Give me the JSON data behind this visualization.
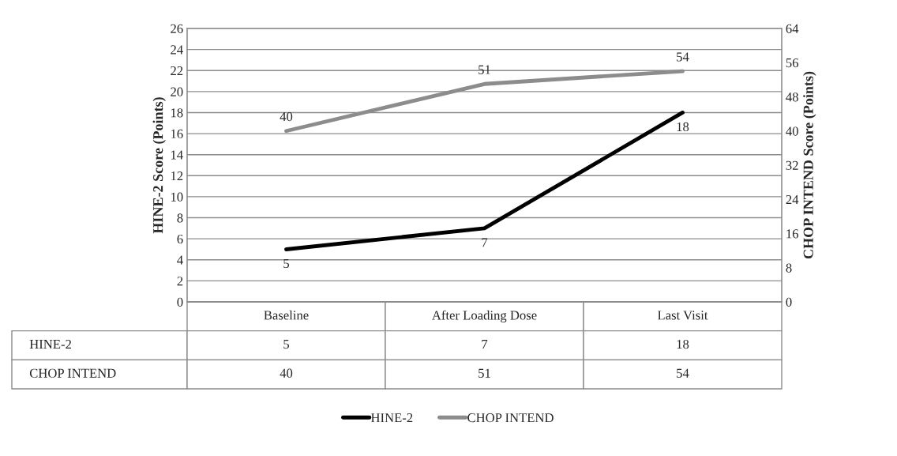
{
  "chart_data": {
    "type": "line",
    "categories": [
      "Baseline",
      "After Loading Dose",
      "Last Visit"
    ],
    "series": [
      {
        "name": "HINE-2",
        "color": "#000000",
        "values": [
          5,
          7,
          18
        ],
        "value_labels": [
          "5",
          "7",
          "18"
        ]
      },
      {
        "name": "CHOP INTEND",
        "color": "#8c8c8c",
        "values": [
          40,
          51,
          54
        ],
        "value_labels": [
          "40",
          "51",
          "54"
        ],
        "axis": "y2"
      }
    ],
    "ylabel": "HINE-2 Score (Points)",
    "y2label": "CHOP INTEND Score (Points)",
    "ylim": [
      0,
      26
    ],
    "yticks": [
      0,
      2,
      4,
      6,
      8,
      10,
      12,
      14,
      16,
      18,
      20,
      22,
      24,
      26
    ],
    "y2lim": [
      0,
      64
    ],
    "y2ticks": [
      0,
      8,
      16,
      24,
      32,
      40,
      48,
      56,
      64
    ],
    "annotations": [
      "5",
      "7",
      "18",
      "40",
      "51",
      "54"
    ],
    "grid": "y",
    "legend": "bottom",
    "data_labels": true,
    "marker": "none",
    "line_style": "solid"
  }
}
